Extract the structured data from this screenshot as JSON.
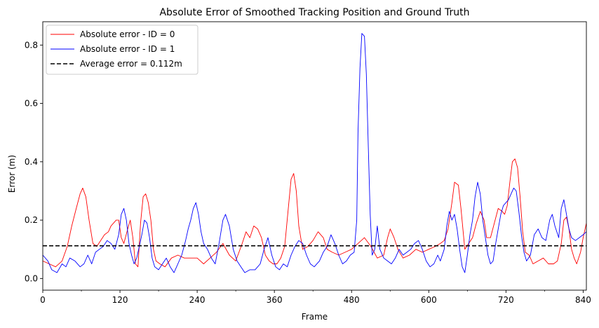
{
  "chart_data": {
    "type": "line",
    "title": "Absolute Error of Smoothed Tracking Position and Ground Truth",
    "xlabel": "Frame",
    "ylabel": "Error (m)",
    "xlim": [
      0,
      845
    ],
    "ylim": [
      -0.04,
      0.88
    ],
    "xticks": [
      0,
      120,
      240,
      360,
      480,
      600,
      720,
      840
    ],
    "yticks": [
      0.0,
      0.2,
      0.4,
      0.6,
      0.8
    ],
    "legend_placement": "top-left",
    "grid": false,
    "series": [
      {
        "name": "Absolute error - ID = 0",
        "color": "#ff0000",
        "points": [
          [
            0,
            0.06
          ],
          [
            10,
            0.05
          ],
          [
            20,
            0.04
          ],
          [
            30,
            0.06
          ],
          [
            38,
            0.11
          ],
          [
            45,
            0.18
          ],
          [
            52,
            0.24
          ],
          [
            58,
            0.29
          ],
          [
            62,
            0.31
          ],
          [
            67,
            0.28
          ],
          [
            72,
            0.2
          ],
          [
            78,
            0.12
          ],
          [
            84,
            0.11
          ],
          [
            90,
            0.13
          ],
          [
            96,
            0.15
          ],
          [
            102,
            0.16
          ],
          [
            106,
            0.18
          ],
          [
            110,
            0.19
          ],
          [
            114,
            0.2
          ],
          [
            118,
            0.2
          ],
          [
            122,
            0.14
          ],
          [
            126,
            0.12
          ],
          [
            132,
            0.17
          ],
          [
            136,
            0.2
          ],
          [
            140,
            0.14
          ],
          [
            144,
            0.05
          ],
          [
            148,
            0.04
          ],
          [
            152,
            0.19
          ],
          [
            156,
            0.28
          ],
          [
            160,
            0.29
          ],
          [
            164,
            0.26
          ],
          [
            168,
            0.2
          ],
          [
            172,
            0.1
          ],
          [
            176,
            0.06
          ],
          [
            182,
            0.05
          ],
          [
            190,
            0.04
          ],
          [
            200,
            0.07
          ],
          [
            210,
            0.08
          ],
          [
            220,
            0.07
          ],
          [
            230,
            0.07
          ],
          [
            240,
            0.07
          ],
          [
            250,
            0.05
          ],
          [
            260,
            0.07
          ],
          [
            270,
            0.09
          ],
          [
            280,
            0.12
          ],
          [
            290,
            0.08
          ],
          [
            300,
            0.06
          ],
          [
            310,
            0.12
          ],
          [
            316,
            0.16
          ],
          [
            322,
            0.14
          ],
          [
            328,
            0.18
          ],
          [
            334,
            0.17
          ],
          [
            340,
            0.14
          ],
          [
            346,
            0.08
          ],
          [
            352,
            0.06
          ],
          [
            358,
            0.05
          ],
          [
            364,
            0.05
          ],
          [
            370,
            0.07
          ],
          [
            376,
            0.11
          ],
          [
            382,
            0.25
          ],
          [
            386,
            0.34
          ],
          [
            390,
            0.36
          ],
          [
            394,
            0.3
          ],
          [
            398,
            0.18
          ],
          [
            404,
            0.1
          ],
          [
            412,
            0.11
          ],
          [
            420,
            0.13
          ],
          [
            428,
            0.16
          ],
          [
            436,
            0.14
          ],
          [
            442,
            0.1
          ],
          [
            450,
            0.09
          ],
          [
            460,
            0.08
          ],
          [
            470,
            0.09
          ],
          [
            480,
            0.1
          ],
          [
            490,
            0.12
          ],
          [
            500,
            0.14
          ],
          [
            510,
            0.11
          ],
          [
            520,
            0.07
          ],
          [
            530,
            0.08
          ],
          [
            536,
            0.14
          ],
          [
            540,
            0.17
          ],
          [
            546,
            0.14
          ],
          [
            552,
            0.1
          ],
          [
            560,
            0.07
          ],
          [
            570,
            0.08
          ],
          [
            580,
            0.1
          ],
          [
            590,
            0.09
          ],
          [
            600,
            0.1
          ],
          [
            610,
            0.11
          ],
          [
            618,
            0.12
          ],
          [
            624,
            0.13
          ],
          [
            630,
            0.17
          ],
          [
            636,
            0.26
          ],
          [
            640,
            0.33
          ],
          [
            646,
            0.32
          ],
          [
            650,
            0.24
          ],
          [
            656,
            0.1
          ],
          [
            662,
            0.12
          ],
          [
            668,
            0.14
          ],
          [
            674,
            0.19
          ],
          [
            680,
            0.23
          ],
          [
            686,
            0.2
          ],
          [
            690,
            0.14
          ],
          [
            696,
            0.14
          ],
          [
            702,
            0.19
          ],
          [
            708,
            0.24
          ],
          [
            714,
            0.23
          ],
          [
            718,
            0.22
          ],
          [
            722,
            0.25
          ],
          [
            726,
            0.33
          ],
          [
            730,
            0.4
          ],
          [
            734,
            0.41
          ],
          [
            738,
            0.38
          ],
          [
            742,
            0.28
          ],
          [
            746,
            0.16
          ],
          [
            750,
            0.09
          ],
          [
            756,
            0.08
          ],
          [
            762,
            0.05
          ],
          [
            770,
            0.06
          ],
          [
            778,
            0.07
          ],
          [
            786,
            0.05
          ],
          [
            794,
            0.05
          ],
          [
            800,
            0.06
          ],
          [
            806,
            0.12
          ],
          [
            810,
            0.2
          ],
          [
            814,
            0.21
          ],
          [
            818,
            0.17
          ],
          [
            822,
            0.1
          ],
          [
            826,
            0.07
          ],
          [
            830,
            0.05
          ],
          [
            836,
            0.09
          ],
          [
            840,
            0.14
          ],
          [
            845,
            0.19
          ]
        ]
      },
      {
        "name": "Absolute error - ID = 1",
        "color": "#0000ff",
        "points": [
          [
            0,
            0.08
          ],
          [
            8,
            0.06
          ],
          [
            14,
            0.03
          ],
          [
            22,
            0.02
          ],
          [
            30,
            0.05
          ],
          [
            36,
            0.04
          ],
          [
            42,
            0.07
          ],
          [
            50,
            0.06
          ],
          [
            58,
            0.04
          ],
          [
            64,
            0.05
          ],
          [
            70,
            0.08
          ],
          [
            76,
            0.05
          ],
          [
            82,
            0.09
          ],
          [
            88,
            0.1
          ],
          [
            94,
            0.11
          ],
          [
            100,
            0.13
          ],
          [
            106,
            0.12
          ],
          [
            112,
            0.1
          ],
          [
            118,
            0.15
          ],
          [
            122,
            0.22
          ],
          [
            126,
            0.24
          ],
          [
            130,
            0.2
          ],
          [
            134,
            0.12
          ],
          [
            138,
            0.08
          ],
          [
            142,
            0.05
          ],
          [
            146,
            0.07
          ],
          [
            150,
            0.11
          ],
          [
            154,
            0.15
          ],
          [
            158,
            0.2
          ],
          [
            162,
            0.19
          ],
          [
            166,
            0.14
          ],
          [
            170,
            0.07
          ],
          [
            174,
            0.04
          ],
          [
            180,
            0.03
          ],
          [
            186,
            0.05
          ],
          [
            192,
            0.07
          ],
          [
            198,
            0.04
          ],
          [
            204,
            0.02
          ],
          [
            210,
            0.05
          ],
          [
            216,
            0.08
          ],
          [
            222,
            0.13
          ],
          [
            226,
            0.17
          ],
          [
            230,
            0.2
          ],
          [
            234,
            0.24
          ],
          [
            238,
            0.26
          ],
          [
            242,
            0.22
          ],
          [
            246,
            0.16
          ],
          [
            250,
            0.12
          ],
          [
            256,
            0.1
          ],
          [
            262,
            0.07
          ],
          [
            268,
            0.05
          ],
          [
            274,
            0.12
          ],
          [
            280,
            0.2
          ],
          [
            284,
            0.22
          ],
          [
            290,
            0.18
          ],
          [
            296,
            0.1
          ],
          [
            302,
            0.06
          ],
          [
            308,
            0.04
          ],
          [
            314,
            0.02
          ],
          [
            322,
            0.03
          ],
          [
            330,
            0.03
          ],
          [
            338,
            0.05
          ],
          [
            344,
            0.1
          ],
          [
            350,
            0.14
          ],
          [
            356,
            0.08
          ],
          [
            362,
            0.04
          ],
          [
            368,
            0.03
          ],
          [
            374,
            0.05
          ],
          [
            380,
            0.04
          ],
          [
            386,
            0.08
          ],
          [
            392,
            0.11
          ],
          [
            398,
            0.13
          ],
          [
            404,
            0.12
          ],
          [
            410,
            0.08
          ],
          [
            416,
            0.05
          ],
          [
            422,
            0.04
          ],
          [
            430,
            0.06
          ],
          [
            436,
            0.09
          ],
          [
            442,
            0.11
          ],
          [
            448,
            0.15
          ],
          [
            454,
            0.12
          ],
          [
            460,
            0.08
          ],
          [
            466,
            0.05
          ],
          [
            472,
            0.06
          ],
          [
            478,
            0.08
          ],
          [
            484,
            0.09
          ],
          [
            488,
            0.2
          ],
          [
            490,
            0.5
          ],
          [
            493,
            0.72
          ],
          [
            496,
            0.84
          ],
          [
            500,
            0.83
          ],
          [
            503,
            0.7
          ],
          [
            506,
            0.45
          ],
          [
            509,
            0.22
          ],
          [
            512,
            0.08
          ],
          [
            516,
            0.1
          ],
          [
            520,
            0.18
          ],
          [
            524,
            0.1
          ],
          [
            530,
            0.07
          ],
          [
            536,
            0.06
          ],
          [
            542,
            0.05
          ],
          [
            548,
            0.07
          ],
          [
            554,
            0.1
          ],
          [
            560,
            0.08
          ],
          [
            566,
            0.09
          ],
          [
            572,
            0.1
          ],
          [
            578,
            0.12
          ],
          [
            584,
            0.13
          ],
          [
            590,
            0.1
          ],
          [
            596,
            0.06
          ],
          [
            602,
            0.04
          ],
          [
            608,
            0.05
          ],
          [
            614,
            0.08
          ],
          [
            618,
            0.06
          ],
          [
            624,
            0.1
          ],
          [
            628,
            0.18
          ],
          [
            632,
            0.23
          ],
          [
            636,
            0.2
          ],
          [
            640,
            0.22
          ],
          [
            644,
            0.17
          ],
          [
            648,
            0.1
          ],
          [
            652,
            0.04
          ],
          [
            656,
            0.02
          ],
          [
            660,
            0.08
          ],
          [
            664,
            0.15
          ],
          [
            668,
            0.2
          ],
          [
            672,
            0.28
          ],
          [
            676,
            0.33
          ],
          [
            680,
            0.29
          ],
          [
            684,
            0.2
          ],
          [
            688,
            0.14
          ],
          [
            692,
            0.08
          ],
          [
            696,
            0.05
          ],
          [
            700,
            0.06
          ],
          [
            704,
            0.12
          ],
          [
            708,
            0.17
          ],
          [
            712,
            0.22
          ],
          [
            716,
            0.25
          ],
          [
            720,
            0.26
          ],
          [
            724,
            0.27
          ],
          [
            728,
            0.29
          ],
          [
            732,
            0.31
          ],
          [
            736,
            0.3
          ],
          [
            740,
            0.23
          ],
          [
            744,
            0.15
          ],
          [
            748,
            0.09
          ],
          [
            752,
            0.06
          ],
          [
            758,
            0.08
          ],
          [
            764,
            0.15
          ],
          [
            770,
            0.17
          ],
          [
            776,
            0.14
          ],
          [
            782,
            0.13
          ],
          [
            788,
            0.2
          ],
          [
            792,
            0.22
          ],
          [
            796,
            0.18
          ],
          [
            802,
            0.14
          ],
          [
            806,
            0.24
          ],
          [
            810,
            0.27
          ],
          [
            814,
            0.22
          ],
          [
            818,
            0.17
          ],
          [
            822,
            0.14
          ],
          [
            828,
            0.13
          ],
          [
            834,
            0.14
          ],
          [
            840,
            0.15
          ],
          [
            845,
            0.16
          ]
        ]
      },
      {
        "name": "Average error = 0.112m",
        "color": "#000000",
        "dashed": true,
        "value": 0.112
      }
    ]
  }
}
